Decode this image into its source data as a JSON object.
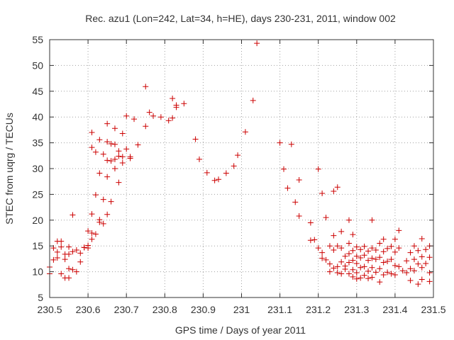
{
  "chart_data": {
    "type": "scatter",
    "title": "Rec. azu1 (Lon=242, Lat=34, h=HE), days 230-231, 2011, window 002",
    "xlabel": "GPS time / Days of year 2011",
    "ylabel": "STEC from uqrg / TECUs",
    "xlim": [
      230.5,
      231.5
    ],
    "ylim": [
      5,
      55
    ],
    "x_ticks": [
      "230.5",
      "230.6",
      "230.7",
      "230.8",
      "230.9",
      "231",
      "231.1",
      "231.2",
      "231.3",
      "231.4",
      "231.5"
    ],
    "y_ticks": [
      "5",
      "10",
      "15",
      "20",
      "25",
      "30",
      "35",
      "40",
      "45",
      "50",
      "55"
    ],
    "grid": "dotted",
    "marker": "plus",
    "color": "#cc0000",
    "points": [
      [
        230.5,
        10.9
      ],
      [
        230.5,
        9.6
      ],
      [
        230.51,
        14.6
      ],
      [
        230.51,
        12.3
      ],
      [
        230.52,
        15.9
      ],
      [
        230.52,
        13.8
      ],
      [
        230.52,
        12.7
      ],
      [
        230.53,
        9.6
      ],
      [
        230.53,
        15.9
      ],
      [
        230.53,
        14.8
      ],
      [
        230.54,
        13.4
      ],
      [
        230.54,
        12.4
      ],
      [
        230.54,
        8.8
      ],
      [
        230.55,
        14.8
      ],
      [
        230.55,
        13.4
      ],
      [
        230.55,
        10.6
      ],
      [
        230.55,
        8.8
      ],
      [
        230.56,
        21.0
      ],
      [
        230.56,
        13.9
      ],
      [
        230.56,
        10.4
      ],
      [
        230.57,
        10.0
      ],
      [
        230.57,
        14.2
      ],
      [
        230.58,
        13.6
      ],
      [
        230.58,
        11.9
      ],
      [
        230.59,
        14.7
      ],
      [
        230.59,
        14.7
      ],
      [
        230.6,
        15.1
      ],
      [
        230.6,
        17.9
      ],
      [
        230.6,
        14.6
      ],
      [
        230.61,
        37.0
      ],
      [
        230.61,
        34.1
      ],
      [
        230.61,
        21.2
      ],
      [
        230.61,
        17.5
      ],
      [
        230.61,
        16.3
      ],
      [
        230.62,
        33.2
      ],
      [
        230.62,
        17.3
      ],
      [
        230.62,
        24.9
      ],
      [
        230.63,
        35.6
      ],
      [
        230.63,
        20.1
      ],
      [
        230.63,
        19.6
      ],
      [
        230.63,
        29.1
      ],
      [
        230.64,
        32.8
      ],
      [
        230.64,
        24.0
      ],
      [
        230.64,
        19.3
      ],
      [
        230.65,
        38.7
      ],
      [
        230.65,
        35.2
      ],
      [
        230.65,
        31.6
      ],
      [
        230.65,
        28.4
      ],
      [
        230.65,
        21.1
      ],
      [
        230.66,
        34.8
      ],
      [
        230.66,
        31.5
      ],
      [
        230.66,
        23.6
      ],
      [
        230.67,
        37.8
      ],
      [
        230.67,
        34.7
      ],
      [
        230.67,
        31.8
      ],
      [
        230.67,
        30.0
      ],
      [
        230.68,
        33.4
      ],
      [
        230.68,
        27.3
      ],
      [
        230.68,
        32.4
      ],
      [
        230.69,
        36.8
      ],
      [
        230.69,
        31.1
      ],
      [
        230.69,
        32.3
      ],
      [
        230.7,
        40.2
      ],
      [
        230.7,
        33.8
      ],
      [
        230.71,
        32.3
      ],
      [
        230.71,
        32.0
      ],
      [
        230.72,
        39.6
      ],
      [
        230.73,
        34.6
      ],
      [
        230.75,
        45.9
      ],
      [
        230.75,
        38.2
      ],
      [
        230.76,
        40.9
      ],
      [
        230.77,
        40.2
      ],
      [
        230.79,
        40.0
      ],
      [
        230.81,
        39.3
      ],
      [
        230.82,
        43.6
      ],
      [
        230.82,
        39.8
      ],
      [
        230.83,
        41.9
      ],
      [
        230.83,
        42.3
      ],
      [
        230.85,
        42.6
      ],
      [
        230.88,
        35.7
      ],
      [
        230.89,
        31.8
      ],
      [
        230.91,
        29.2
      ],
      [
        230.93,
        27.7
      ],
      [
        230.94,
        27.9
      ],
      [
        230.96,
        29.1
      ],
      [
        230.98,
        30.5
      ],
      [
        230.99,
        32.6
      ],
      [
        231.01,
        37.1
      ],
      [
        231.03,
        43.2
      ],
      [
        231.04,
        54.3
      ],
      [
        231.1,
        35.0
      ],
      [
        231.11,
        29.9
      ],
      [
        231.12,
        26.2
      ],
      [
        231.13,
        34.7
      ],
      [
        231.14,
        23.5
      ],
      [
        231.15,
        27.8
      ],
      [
        231.15,
        20.8
      ],
      [
        231.18,
        19.5
      ],
      [
        231.18,
        16.1
      ],
      [
        231.19,
        16.2
      ],
      [
        231.2,
        29.9
      ],
      [
        231.2,
        14.6
      ],
      [
        231.21,
        25.2
      ],
      [
        231.21,
        13.7
      ],
      [
        231.21,
        12.6
      ],
      [
        231.22,
        20.5
      ],
      [
        231.22,
        12.3
      ],
      [
        231.23,
        15.0
      ],
      [
        231.23,
        11.5
      ],
      [
        231.23,
        10.0
      ],
      [
        231.24,
        25.6
      ],
      [
        231.24,
        17.0
      ],
      [
        231.24,
        14.2
      ],
      [
        231.24,
        10.7
      ],
      [
        231.25,
        26.4
      ],
      [
        231.25,
        15.0
      ],
      [
        231.25,
        11.0
      ],
      [
        231.25,
        9.8
      ],
      [
        231.26,
        17.8
      ],
      [
        231.26,
        14.6
      ],
      [
        231.26,
        11.9
      ],
      [
        231.26,
        9.6
      ],
      [
        231.27,
        13.0
      ],
      [
        231.27,
        11.1
      ],
      [
        231.27,
        10.5
      ],
      [
        231.28,
        20.0
      ],
      [
        231.28,
        15.5
      ],
      [
        231.28,
        13.5
      ],
      [
        231.28,
        11.8
      ],
      [
        231.28,
        9.6
      ],
      [
        231.29,
        17.2
      ],
      [
        231.29,
        14.1
      ],
      [
        231.29,
        12.2
      ],
      [
        231.29,
        10.4
      ],
      [
        231.29,
        9.0
      ],
      [
        231.3,
        14.8
      ],
      [
        231.3,
        13.0
      ],
      [
        231.3,
        11.6
      ],
      [
        231.3,
        9.8
      ],
      [
        231.3,
        8.6
      ],
      [
        231.31,
        14.3
      ],
      [
        231.31,
        12.7
      ],
      [
        231.31,
        10.8
      ],
      [
        231.31,
        8.8
      ],
      [
        231.32,
        14.9
      ],
      [
        231.32,
        13.2
      ],
      [
        231.32,
        11.0
      ],
      [
        231.32,
        9.3
      ],
      [
        231.33,
        14.0
      ],
      [
        231.33,
        12.2
      ],
      [
        231.33,
        10.1
      ],
      [
        231.33,
        8.7
      ],
      [
        231.34,
        20.0
      ],
      [
        231.34,
        14.6
      ],
      [
        231.34,
        12.6
      ],
      [
        231.34,
        10.8
      ],
      [
        231.34,
        8.9
      ],
      [
        231.35,
        14.2
      ],
      [
        231.35,
        12.4
      ],
      [
        231.35,
        9.9
      ],
      [
        231.36,
        15.5
      ],
      [
        231.36,
        12.8
      ],
      [
        231.36,
        10.6
      ],
      [
        231.36,
        8.0
      ],
      [
        231.37,
        16.3
      ],
      [
        231.37,
        13.9
      ],
      [
        231.37,
        11.8
      ],
      [
        231.37,
        9.4
      ],
      [
        231.38,
        14.5
      ],
      [
        231.38,
        12.0
      ],
      [
        231.38,
        9.9
      ],
      [
        231.39,
        14.9
      ],
      [
        231.39,
        12.4
      ],
      [
        231.39,
        9.6
      ],
      [
        231.4,
        16.3
      ],
      [
        231.4,
        13.8
      ],
      [
        231.4,
        11.2
      ],
      [
        231.4,
        9.4
      ],
      [
        231.41,
        18.0
      ],
      [
        231.41,
        14.6
      ],
      [
        231.41,
        11.0
      ],
      [
        231.42,
        10.2
      ],
      [
        231.43,
        12.1
      ],
      [
        231.43,
        9.8
      ],
      [
        231.44,
        13.7
      ],
      [
        231.44,
        10.6
      ],
      [
        231.44,
        8.3
      ],
      [
        231.45,
        15.0
      ],
      [
        231.45,
        12.4
      ],
      [
        231.45,
        10.2
      ],
      [
        231.46,
        14.1
      ],
      [
        231.46,
        11.5
      ],
      [
        231.46,
        7.6
      ],
      [
        231.47,
        16.4
      ],
      [
        231.47,
        12.9
      ],
      [
        231.47,
        10.8
      ],
      [
        231.47,
        8.5
      ],
      [
        231.48,
        14.3
      ],
      [
        231.48,
        11.6
      ],
      [
        231.49,
        15.0
      ],
      [
        231.49,
        12.8
      ],
      [
        231.49,
        9.8
      ],
      [
        231.49,
        8.1
      ]
    ]
  }
}
